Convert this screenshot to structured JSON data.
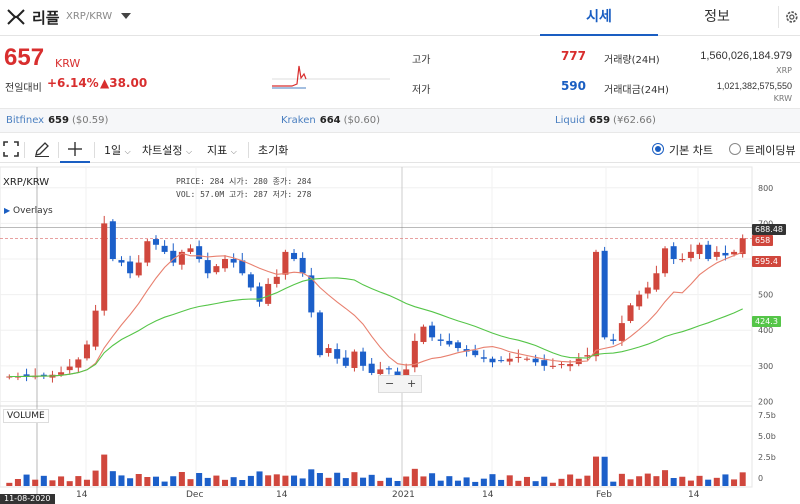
{
  "header": {
    "coin_name": "리플",
    "pair": "XRP/KRW",
    "tabs": [
      "시세",
      "정보"
    ]
  },
  "price": {
    "current": "657",
    "unit": "KRW",
    "change_label": "전일대비",
    "change_rate": "+6.14%",
    "change_amount": "▲38.00"
  },
  "stats": {
    "high_label": "고가",
    "high_value": "777",
    "low_label": "저가",
    "low_value": "590",
    "volume_label": "거래량(24H)",
    "volume_value": "1,560,026,184.979",
    "volume_unit": "XRP",
    "amount_label": "거래대금(24H)",
    "amount_value": "1,021,382,575,550",
    "amount_unit": "KRW"
  },
  "exchanges": [
    {
      "name": "Bitfinex",
      "price": "659",
      "sub": "($0.59)"
    },
    {
      "name": "Kraken",
      "price": "664",
      "sub": "($0.60)"
    },
    {
      "name": "Liquid",
      "price": "659",
      "sub": "(¥62.66)"
    }
  ],
  "toolbar": {
    "period": "1일",
    "chart_settings": "차트설정",
    "indicators": "지표",
    "reset": "초기화",
    "basic_chart": "기본 차트",
    "tradingview": "트레이딩뷰"
  },
  "chart_header": {
    "pair_label": "XRP/KRW",
    "overlays": "Overlays",
    "ohlc_line1": "PRICE: 284   시가: 280   종가: 284",
    "ohlc_line2": "VOL:  57.0M   고가: 287   저가: 278",
    "volume_label": "VOLUME"
  },
  "price_tags": {
    "upper": "688.48",
    "current": "658",
    "ma_short": "595.4",
    "ma_long": "424.3"
  },
  "date_badge": "11-08-2020",
  "colors": {
    "up": "#d0473d",
    "down": "#1c5fc9",
    "ma_short": "#e8806f",
    "ma_long": "#55c548",
    "accent": "#1a5ec2"
  },
  "chart_data": {
    "type": "candlestick",
    "y_axis_ticks": [
      200,
      300,
      400,
      500,
      600,
      700,
      800
    ],
    "volume_axis_ticks": [
      "0",
      "2.5b",
      "5.0b",
      "7.5b"
    ],
    "x_axis_labels": [
      "14",
      "Dec",
      "14",
      "2021",
      "14",
      "Feb",
      "14"
    ],
    "ylim": [
      190,
      850
    ],
    "closes": [
      270,
      270,
      271,
      272,
      273,
      275,
      282,
      298,
      318,
      360,
      455,
      700,
      600,
      590,
      560,
      590,
      650,
      640,
      620,
      590,
      620,
      630,
      600,
      560,
      580,
      600,
      590,
      560,
      520,
      480,
      530,
      550,
      620,
      600,
      560,
      450,
      330,
      350,
      320,
      300,
      340,
      300,
      280,
      290,
      290,
      260,
      290,
      370,
      410,
      380,
      370,
      360,
      350,
      340,
      330,
      320,
      310,
      315,
      320,
      325,
      320,
      310,
      300,
      300,
      305,
      305,
      320,
      330,
      620,
      380,
      370,
      420,
      470,
      500,
      520,
      560,
      630,
      600,
      600,
      620,
      640,
      600,
      620,
      610,
      620,
      658
    ],
    "ma_short_end": 595.4,
    "ma_long_end": 424.3,
    "upper_line": 688.48,
    "current_line": 658
  }
}
